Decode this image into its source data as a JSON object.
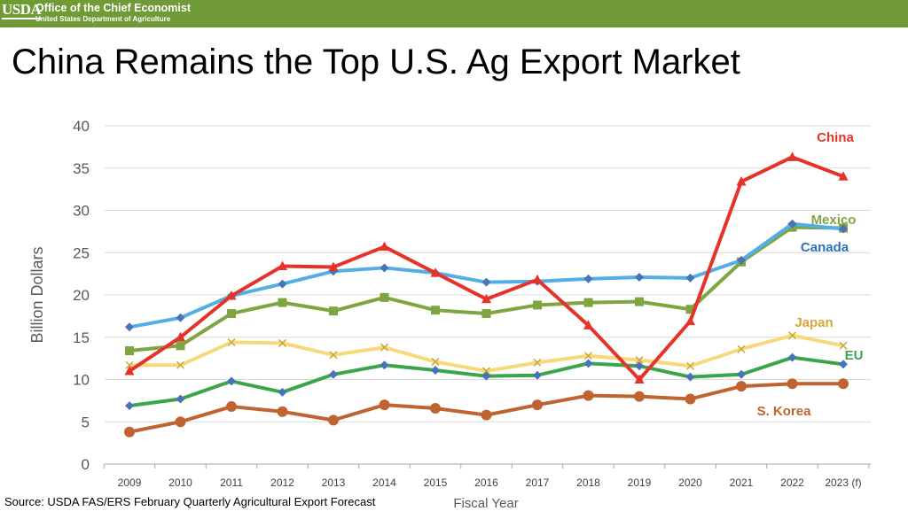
{
  "header": {
    "logo_text": "USDA",
    "office": "Office of the Chief Economist",
    "department": "United States Department of Agriculture",
    "color": "#6f9a36"
  },
  "title": "China Remains the Top U.S. Ag Export Market",
  "source": "Source: USDA FAS/ERS February Quarterly Agricultural Export Forecast",
  "chart_data": {
    "type": "line",
    "xlabel": "Fiscal Year",
    "ylabel": "Billion Dollars",
    "ylim": [
      0,
      40
    ],
    "yticks": [
      "0",
      "5",
      "10",
      "15",
      "20",
      "25",
      "30",
      "35",
      "40"
    ],
    "categories": [
      "2009",
      "2010",
      "2011",
      "2012",
      "2013",
      "2014",
      "2015",
      "2016",
      "2017",
      "2018",
      "2019",
      "2020",
      "2021",
      "2022",
      "2023 (f)"
    ],
    "grid": true,
    "legend": "labels at line ends",
    "series": [
      {
        "name": "China",
        "color": "#e63329",
        "marker": "triangle",
        "values": [
          11.0,
          15.0,
          19.9,
          23.4,
          23.3,
          25.7,
          22.6,
          19.5,
          21.8,
          16.4,
          10.0,
          16.9,
          33.4,
          36.3,
          34.0
        ]
      },
      {
        "name": "Mexico",
        "color": "#7ea53f",
        "marker": "square",
        "values": [
          13.4,
          14.0,
          17.8,
          19.1,
          18.1,
          19.7,
          18.2,
          17.8,
          18.8,
          19.1,
          19.2,
          18.3,
          23.9,
          28.0,
          27.9
        ]
      },
      {
        "name": "Canada",
        "color": "#54ade6",
        "marker": "diamond",
        "values": [
          16.2,
          17.3,
          19.9,
          21.3,
          22.8,
          23.2,
          22.6,
          21.5,
          21.6,
          21.9,
          22.1,
          22.0,
          24.1,
          28.4,
          27.8
        ]
      },
      {
        "name": "Japan",
        "color": "#f6d97a",
        "marker": "x",
        "values": [
          11.7,
          11.7,
          14.4,
          14.3,
          12.9,
          13.8,
          12.1,
          11.0,
          12.0,
          12.8,
          12.3,
          11.6,
          13.6,
          15.2,
          14.0
        ]
      },
      {
        "name": "EU",
        "color": "#3ca54c",
        "marker": "diamond",
        "values": [
          6.9,
          7.7,
          9.8,
          8.5,
          10.6,
          11.7,
          11.1,
          10.4,
          10.5,
          11.9,
          11.6,
          10.3,
          10.6,
          12.6,
          11.8
        ]
      },
      {
        "name": "S. Korea",
        "color": "#bf6431",
        "marker": "circle",
        "values": [
          3.8,
          5.0,
          6.8,
          6.2,
          5.2,
          7.0,
          6.6,
          5.8,
          7.0,
          8.1,
          8.0,
          7.7,
          9.2,
          9.5,
          9.5
        ]
      }
    ]
  }
}
